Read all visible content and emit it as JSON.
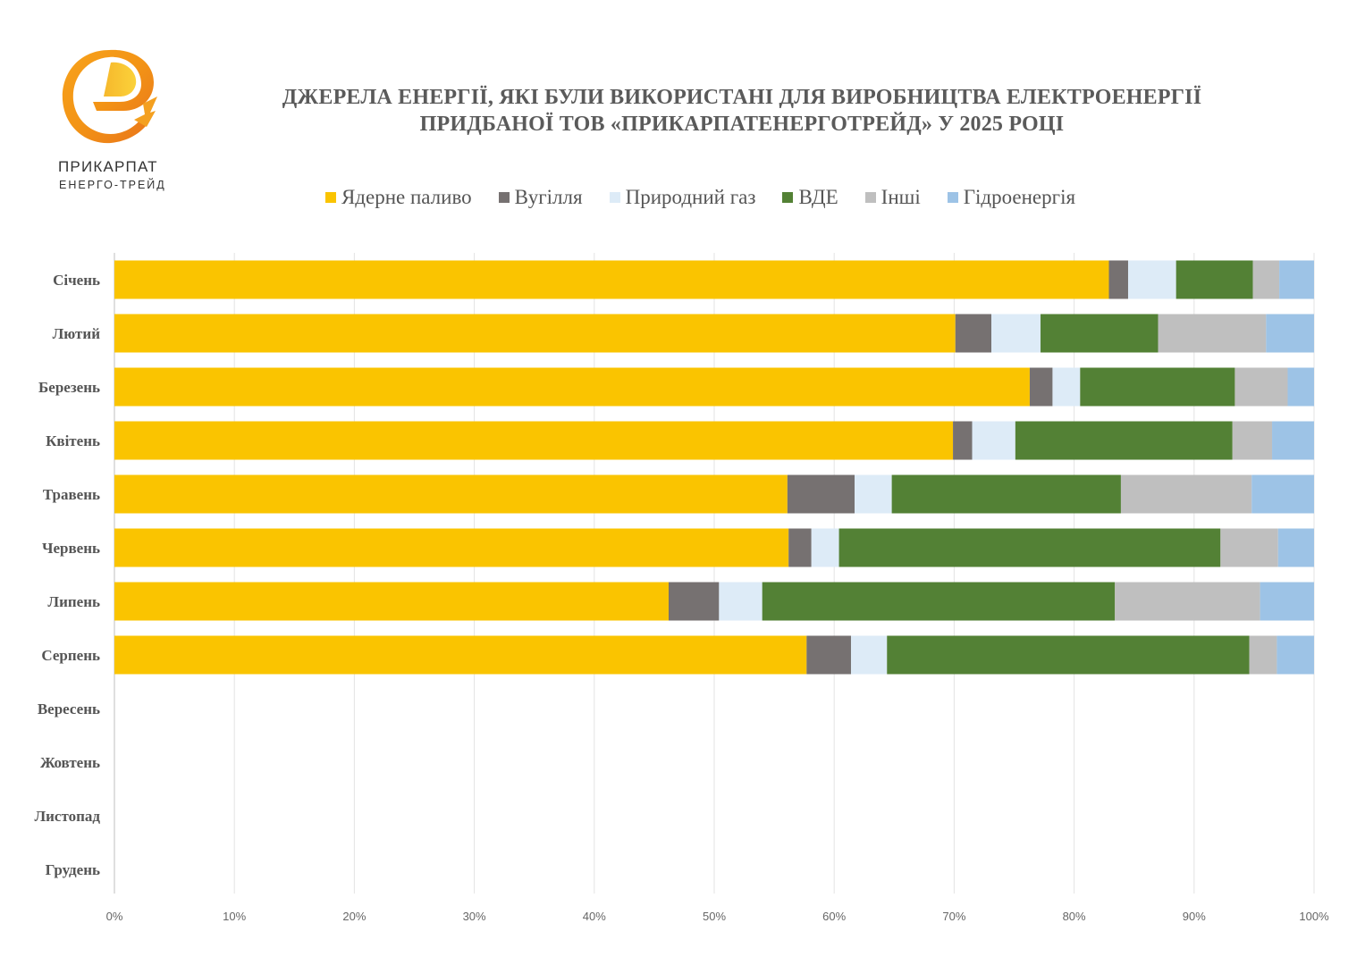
{
  "logo": {
    "line1": "ПРИКАРПАТ",
    "line2": "ЕНЕРГО-ТРЕЙД"
  },
  "chart_data": {
    "type": "bar",
    "orientation": "horizontal",
    "stacked": "percent",
    "title": [
      "ДЖЕРЕЛА ЕНЕРГІЇ, ЯКІ БУЛИ ВИКОРИСТАНІ ДЛЯ ВИРОБНИЦТВА ЕЛЕКТРОЕНЕРГІЇ",
      "ПРИДБАНОЇ ТОВ «ПРИКАРПАТЕНЕРГОТРЕЙД» У 2025 РОЦІ"
    ],
    "xlabel": "",
    "ylabel": "",
    "xlim": [
      0,
      100
    ],
    "x_ticks": [
      "0%",
      "10%",
      "20%",
      "30%",
      "40%",
      "50%",
      "60%",
      "70%",
      "80%",
      "90%",
      "100%"
    ],
    "grid": true,
    "legend_position": "top",
    "categories": [
      "Січень",
      "Лютий",
      "Березень",
      "Квітень",
      "Травень",
      "Червень",
      "Липень",
      "Серпень",
      "Вересень",
      "Жовтень",
      "Листопад",
      "Грудень"
    ],
    "series": [
      {
        "name": "Ядерне паливо",
        "color": "#FAC400",
        "values": [
          82.9,
          70.1,
          76.3,
          69.9,
          56.1,
          56.2,
          46.2,
          57.7,
          null,
          null,
          null,
          null
        ]
      },
      {
        "name": "Вугілля",
        "color": "#767171",
        "values": [
          1.6,
          3.0,
          1.9,
          1.6,
          5.6,
          1.9,
          4.2,
          3.7,
          null,
          null,
          null,
          null
        ]
      },
      {
        "name": "Природний газ",
        "color": "#DDEBF7",
        "values": [
          4.0,
          4.1,
          2.3,
          3.6,
          3.1,
          2.3,
          3.6,
          3.0,
          null,
          null,
          null,
          null
        ]
      },
      {
        "name": "ВДЕ",
        "color": "#538135",
        "values": [
          6.4,
          9.8,
          12.9,
          18.1,
          19.1,
          31.8,
          29.4,
          30.2,
          null,
          null,
          null,
          null
        ]
      },
      {
        "name": "Інші",
        "color": "#BFBFBF",
        "values": [
          2.2,
          9.0,
          4.4,
          3.3,
          10.9,
          4.8,
          12.1,
          2.3,
          null,
          null,
          null,
          null
        ]
      },
      {
        "name": "Гідроенергія",
        "color": "#9DC3E6",
        "values": [
          2.9,
          4.0,
          2.2,
          3.5,
          5.2,
          3.0,
          4.5,
          3.1,
          null,
          null,
          null,
          null
        ]
      }
    ]
  }
}
